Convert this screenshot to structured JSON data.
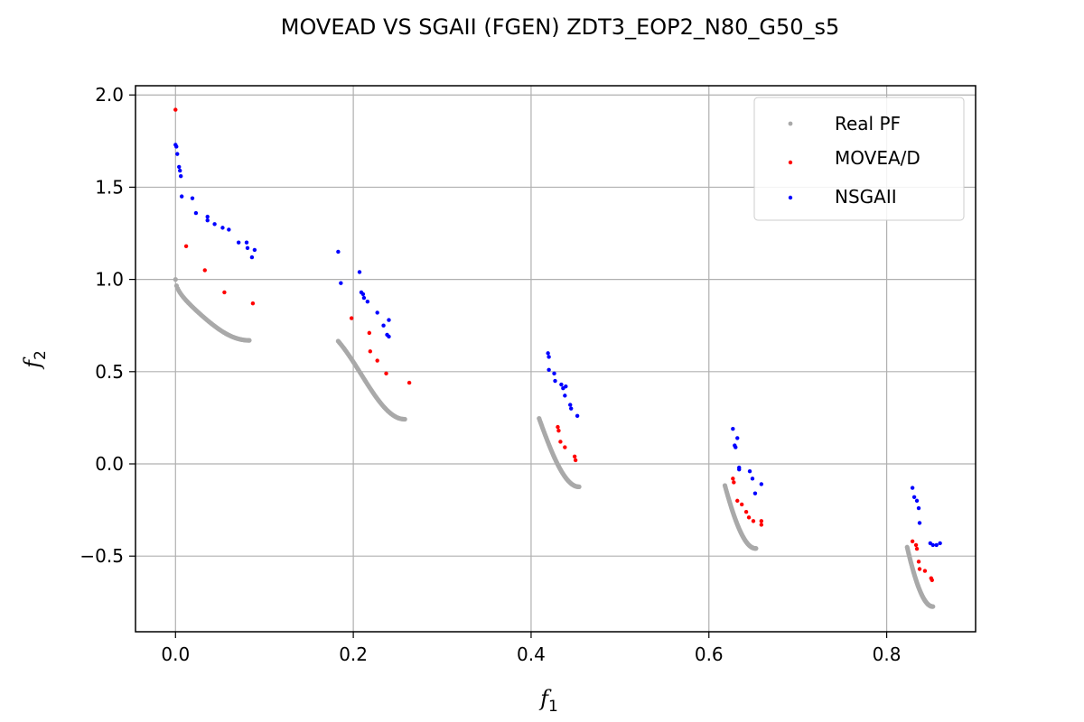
{
  "chart_data": {
    "type": "scatter",
    "title": "MOVEAD VS SGAII (FGEN) ZDT3_EOP2_N80_G50_s5",
    "xlabel": "f",
    "xlabel_sub": "1",
    "ylabel": "f",
    "ylabel_sub": "2",
    "xlim": [
      -0.045,
      0.9
    ],
    "ylim": [
      -0.91,
      2.05
    ],
    "xticks": [
      0.0,
      0.2,
      0.4,
      0.6,
      0.8
    ],
    "xtick_labels": [
      "0.0",
      "0.2",
      "0.4",
      "0.6",
      "0.8"
    ],
    "yticks": [
      -0.5,
      0.0,
      0.5,
      1.0,
      1.5,
      2.0
    ],
    "ytick_labels": [
      "−0.5",
      "0.0",
      "0.5",
      "1.0",
      "1.5",
      "2.0"
    ],
    "grid": true,
    "legend_position": "top-right",
    "real_pf_segments": [
      {
        "x0": 0.0,
        "x1": 0.083
      },
      {
        "x0": 0.183,
        "x1": 0.258
      },
      {
        "x0": 0.409,
        "x1": 0.454
      },
      {
        "x0": 0.618,
        "x1": 0.653
      },
      {
        "x0": 0.823,
        "x1": 0.852
      }
    ],
    "series": [
      {
        "name": "Real PF",
        "color": "#a9a9a9",
        "marker_size": 2.6,
        "points": []
      },
      {
        "name": "MOVEA/D",
        "color": "#ff0000",
        "marker_size": 2.2,
        "points": [
          [
            0.0,
            1.92
          ],
          [
            0.012,
            1.18
          ],
          [
            0.033,
            1.05
          ],
          [
            0.055,
            0.93
          ],
          [
            0.087,
            0.87
          ],
          [
            0.198,
            0.79
          ],
          [
            0.218,
            0.71
          ],
          [
            0.219,
            0.61
          ],
          [
            0.227,
            0.56
          ],
          [
            0.237,
            0.49
          ],
          [
            0.263,
            0.44
          ],
          [
            0.43,
            0.2
          ],
          [
            0.431,
            0.18
          ],
          [
            0.433,
            0.12
          ],
          [
            0.438,
            0.09
          ],
          [
            0.449,
            0.04
          ],
          [
            0.45,
            0.02
          ],
          [
            0.627,
            -0.08
          ],
          [
            0.628,
            -0.1
          ],
          [
            0.632,
            -0.2
          ],
          [
            0.637,
            -0.22
          ],
          [
            0.642,
            -0.26
          ],
          [
            0.645,
            -0.29
          ],
          [
            0.65,
            -0.31
          ],
          [
            0.659,
            -0.31
          ],
          [
            0.659,
            -0.33
          ],
          [
            0.829,
            -0.42
          ],
          [
            0.833,
            -0.44
          ],
          [
            0.834,
            -0.46
          ],
          [
            0.836,
            -0.53
          ],
          [
            0.837,
            -0.57
          ],
          [
            0.843,
            -0.58
          ],
          [
            0.85,
            -0.62
          ],
          [
            0.851,
            -0.63
          ]
        ]
      },
      {
        "name": "NSGAII",
        "color": "#0000ff",
        "marker_size": 2.2,
        "points": [
          [
            0.0,
            1.73
          ],
          [
            0.001,
            1.72
          ],
          [
            0.002,
            1.68
          ],
          [
            0.004,
            1.61
          ],
          [
            0.005,
            1.59
          ],
          [
            0.006,
            1.56
          ],
          [
            0.007,
            1.45
          ],
          [
            0.019,
            1.44
          ],
          [
            0.023,
            1.36
          ],
          [
            0.036,
            1.34
          ],
          [
            0.036,
            1.32
          ],
          [
            0.044,
            1.3
          ],
          [
            0.053,
            1.28
          ],
          [
            0.06,
            1.27
          ],
          [
            0.071,
            1.2
          ],
          [
            0.08,
            1.2
          ],
          [
            0.081,
            1.17
          ],
          [
            0.086,
            1.12
          ],
          [
            0.089,
            1.16
          ],
          [
            0.183,
            1.15
          ],
          [
            0.186,
            0.98
          ],
          [
            0.207,
            1.04
          ],
          [
            0.209,
            0.93
          ],
          [
            0.211,
            0.92
          ],
          [
            0.212,
            0.9
          ],
          [
            0.216,
            0.88
          ],
          [
            0.227,
            0.82
          ],
          [
            0.234,
            0.75
          ],
          [
            0.238,
            0.7
          ],
          [
            0.24,
            0.78
          ],
          [
            0.24,
            0.69
          ],
          [
            0.419,
            0.6
          ],
          [
            0.42,
            0.58
          ],
          [
            0.42,
            0.51
          ],
          [
            0.426,
            0.49
          ],
          [
            0.427,
            0.45
          ],
          [
            0.434,
            0.43
          ],
          [
            0.436,
            0.41
          ],
          [
            0.438,
            0.37
          ],
          [
            0.439,
            0.42
          ],
          [
            0.444,
            0.32
          ],
          [
            0.445,
            0.3
          ],
          [
            0.452,
            0.26
          ],
          [
            0.627,
            0.19
          ],
          [
            0.629,
            0.1
          ],
          [
            0.63,
            0.09
          ],
          [
            0.632,
            0.14
          ],
          [
            0.634,
            -0.02
          ],
          [
            0.634,
            -0.03
          ],
          [
            0.646,
            -0.04
          ],
          [
            0.649,
            -0.08
          ],
          [
            0.652,
            -0.16
          ],
          [
            0.659,
            -0.11
          ],
          [
            0.829,
            -0.13
          ],
          [
            0.831,
            -0.18
          ],
          [
            0.834,
            -0.2
          ],
          [
            0.836,
            -0.24
          ],
          [
            0.837,
            -0.32
          ],
          [
            0.849,
            -0.43
          ],
          [
            0.852,
            -0.44
          ],
          [
            0.856,
            -0.44
          ],
          [
            0.86,
            -0.43
          ]
        ]
      }
    ]
  }
}
